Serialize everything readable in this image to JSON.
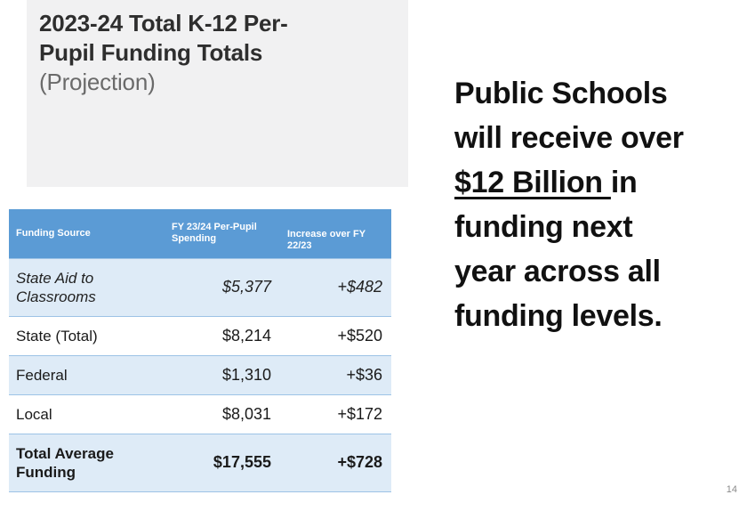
{
  "slide": {
    "page_number": "14",
    "colors": {
      "table_header_blue": "#5B9BD5",
      "table_band_light_blue": "#DEEBF7",
      "table_border_blue": "#9DC3E6",
      "title_box_gray": "#F1F1F2",
      "message_text": "#111111"
    }
  },
  "title": {
    "line1": "2023-24 Total K-12 Per-",
    "line2": "Pupil Funding Totals",
    "line3": "(Projection)"
  },
  "table": {
    "headers": [
      "Funding Source",
      "FY 23/24 Per-Pupil Spending",
      "Increase over FY 22/23"
    ],
    "rows": [
      {
        "source": "State Aid to Classrooms",
        "spending": "$5,377",
        "increase": "+$482"
      },
      {
        "source": "State (Total)",
        "spending": "$8,214",
        "increase": "+$520"
      },
      {
        "source": "Federal",
        "spending": "$1,310",
        "increase": "+$36"
      },
      {
        "source": "Local",
        "spending": "$8,031",
        "increase": "+$172"
      },
      {
        "source": "Total Average Funding",
        "spending": "$17,555",
        "increase": "+$728"
      }
    ]
  },
  "message": {
    "line1": "Public Schools",
    "line2": "will receive over",
    "line3_underlined": "$12 Billion ",
    "line3_rest": "in",
    "line4": "funding next",
    "line5": "year across all",
    "line6": "funding levels."
  }
}
